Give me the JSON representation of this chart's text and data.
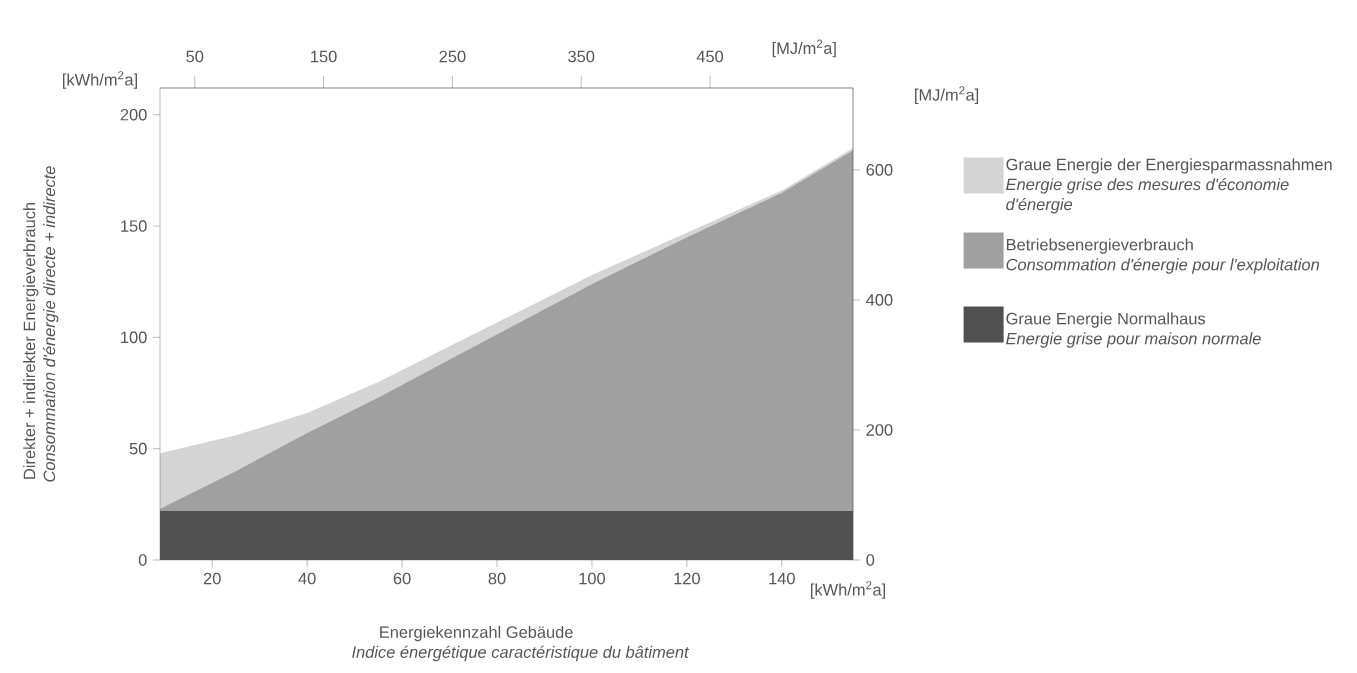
{
  "chart_data": {
    "type": "area",
    "stacked": true,
    "xlabel": "Energiekennzahl Gebäude *Indice énergétique caractéristique du bâtiment*",
    "ylabel": "Direkter + indirekter Energieverbrauch *Consommation d'énergie directe + indirecte*",
    "x2label": "[MJ/m$^{2}$a]",
    "y2label": "[MJ/m$^{2}$a]",
    "annotations": [
      "[kWh/m$^{2}$a]",
      "[kWh/m$^{2}$a]"
    ],
    "x": [
      9,
      25,
      40,
      55,
      70,
      85,
      100,
      120,
      140,
      155
    ],
    "series": [
      {
        "name": "Graue Energie Normalhaus *Energie grise pour maison normale*",
        "color": "#505050",
        "values": [
          22,
          22,
          22,
          22,
          22,
          22,
          22,
          22,
          22,
          22
        ]
      },
      {
        "name": "Betriebsenergieverbrauch *Consommation d'énergie pour l'exploitation*",
        "color": "#a0a0a0",
        "values": [
          1,
          18,
          35,
          51,
          68,
          85,
          102,
          123,
          143,
          162
        ]
      },
      {
        "name": "Graue Energie der Energiesparmassnahmen *Energie grise des mesures d'économie d'énergie*",
        "color": "#d4d4d4",
        "values": [
          25,
          16,
          9,
          7,
          6,
          5,
          4,
          2,
          1,
          1
        ]
      }
    ],
    "xlim": [
      9,
      155
    ],
    "xticks": [
      20,
      40,
      60,
      80,
      100,
      120,
      140
    ],
    "ylim": [
      0,
      212
    ],
    "yticks": [
      0,
      50,
      100,
      150,
      200
    ],
    "x2lim": [
      23,
      561
    ],
    "x2ticks": [
      50,
      150,
      250,
      350,
      450
    ],
    "y2lim": [
      0,
      726
    ],
    "y2ticks": [
      0,
      200,
      400,
      600
    ],
    "legend": "right"
  }
}
